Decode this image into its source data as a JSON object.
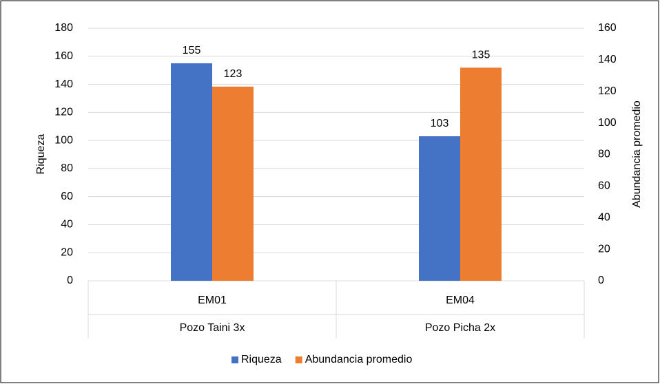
{
  "chart_data": {
    "type": "bar",
    "categories": [
      "EM01",
      "EM04"
    ],
    "groups": [
      "Pozo Taini 3x",
      "Pozo Picha 2x"
    ],
    "series": [
      {
        "name": "Riqueza",
        "color": "#4472c4",
        "values": [
          155,
          103
        ],
        "axis": "y"
      },
      {
        "name": "Abundancia promedio",
        "color": "#ed7d31",
        "values": [
          123,
          135
        ],
        "axis": "y2"
      }
    ],
    "ylabel": "Riqueza",
    "y2label": "Abundancia promedio",
    "ylim": [
      0,
      180
    ],
    "yticks": [
      0,
      20,
      40,
      60,
      80,
      100,
      120,
      140,
      160,
      180
    ],
    "y2lim": [
      0,
      160
    ],
    "y2ticks": [
      0,
      20,
      40,
      60,
      80,
      100,
      120,
      140,
      160
    ],
    "grid": true,
    "legend": "bottom"
  }
}
